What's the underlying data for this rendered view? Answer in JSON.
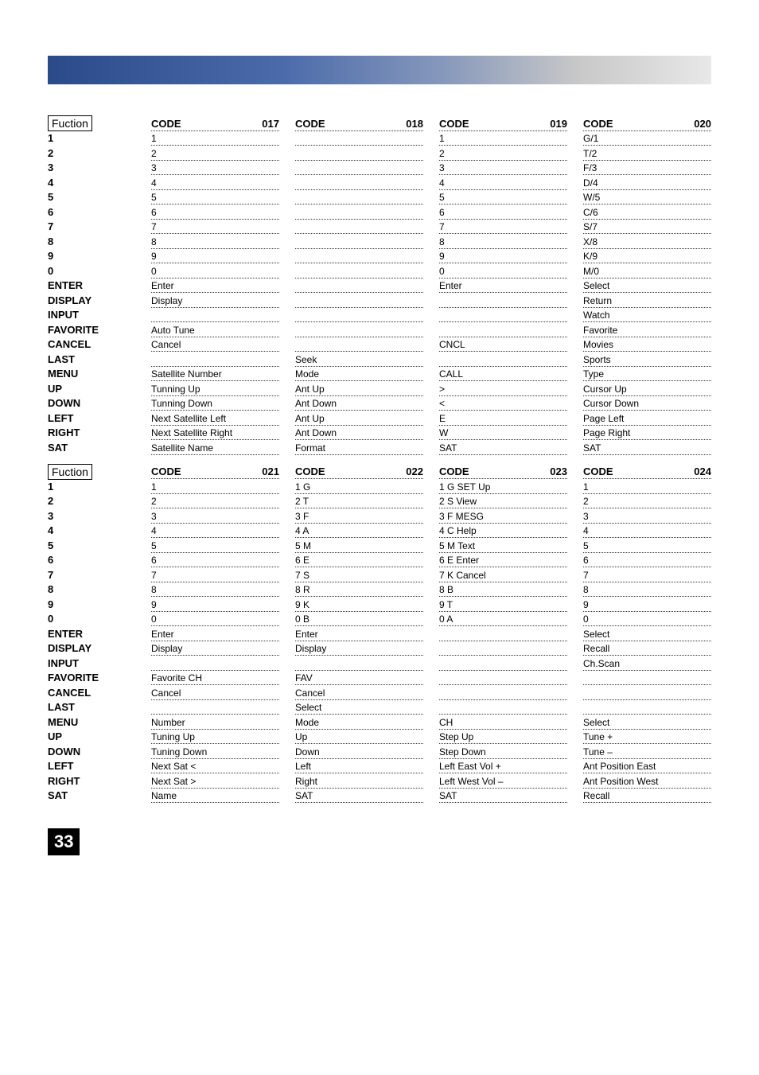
{
  "header_gradient": {
    "from": "#2a4a8a",
    "to": "#e8e8e8"
  },
  "page_number": "33",
  "row_labels": [
    "Fuction",
    "1",
    "2",
    "3",
    "4",
    "5",
    "6",
    "7",
    "8",
    "9",
    "0",
    "ENTER",
    "DISPLAY",
    "INPUT",
    "FAVORITE",
    "CANCEL",
    "LAST",
    "MENU",
    "UP",
    "DOWN",
    "LEFT",
    "RIGHT",
    "SAT"
  ],
  "table1": {
    "columns": [
      {
        "code": "017",
        "cells": [
          "1",
          "2",
          "3",
          "4",
          "5",
          "6",
          "7",
          "8",
          "9",
          "0",
          "Enter",
          "Display",
          "",
          "Auto Tune",
          "Cancel",
          "",
          "Satellite Number",
          "Tunning Up",
          "Tunning Down",
          "Next Satellite Left",
          "Next Satellite Right",
          "Satellite Name"
        ]
      },
      {
        "code": "018",
        "cells": [
          "",
          "",
          "",
          "",
          "",
          "",
          "",
          "",
          "",
          "",
          "",
          "",
          "",
          "",
          "",
          "Seek",
          "Mode",
          "Ant Up",
          "Ant Down",
          "Ant Up",
          "Ant Down",
          "Format"
        ]
      },
      {
        "code": "019",
        "cells": [
          "1",
          "2",
          "3",
          "4",
          "5",
          "6",
          "7",
          "8",
          "9",
          "0",
          "Enter",
          "",
          "",
          "",
          "CNCL",
          "",
          "CALL",
          ">",
          "<",
          "E",
          "W",
          "SAT"
        ]
      },
      {
        "code": "020",
        "cells": [
          "G/1",
          "T/2",
          "F/3",
          "D/4",
          "W/5",
          "C/6",
          "S/7",
          "X/8",
          "K/9",
          "M/0",
          "Select",
          "Return",
          "Watch",
          "Favorite",
          "Movies",
          "Sports",
          "Type",
          "Cursor Up",
          "Cursor Down",
          "Page Left",
          "Page Right",
          "SAT"
        ]
      }
    ]
  },
  "table2": {
    "columns": [
      {
        "code": "021",
        "cells": [
          "1",
          "2",
          "3",
          "4",
          "5",
          "6",
          "7",
          "8",
          "9",
          "0",
          "Enter",
          "Display",
          "",
          "Favorite CH",
          "Cancel",
          "",
          "Number",
          "Tuning Up",
          "Tuning Down",
          "Next Sat <",
          "Next Sat >",
          "Name"
        ]
      },
      {
        "code": "022",
        "cells": [
          "1 G",
          "2 T",
          "3 F",
          "4 A",
          "5 M",
          "6 E",
          "7 S",
          "8 R",
          "9 K",
          "0 B",
          "Enter",
          "Display",
          "",
          "FAV",
          "Cancel",
          "Select",
          "Mode",
          "Up",
          "Down",
          "Left",
          "Right",
          "SAT"
        ]
      },
      {
        "code": "023",
        "cells": [
          "1 G SET Up",
          "2 S View",
          "3 F MESG",
          "4 C Help",
          "5 M Text",
          "6 E Enter",
          "7 K Cancel",
          "8 B",
          "9 T",
          "0 A",
          "",
          "",
          "",
          "",
          "",
          "",
          "CH",
          "Step Up",
          "Step Down",
          "Left East Vol +",
          "Left West Vol –",
          "SAT"
        ]
      },
      {
        "code": "024",
        "cells": [
          "1",
          "2",
          "3",
          "4",
          "5",
          "6",
          "7",
          "8",
          "9",
          "0",
          "Select",
          "Recall",
          "Ch.Scan",
          "",
          "",
          "",
          "Select",
          "Tune +",
          "Tune –",
          "Ant Position East",
          "Ant Position West",
          "Recall"
        ]
      }
    ]
  }
}
